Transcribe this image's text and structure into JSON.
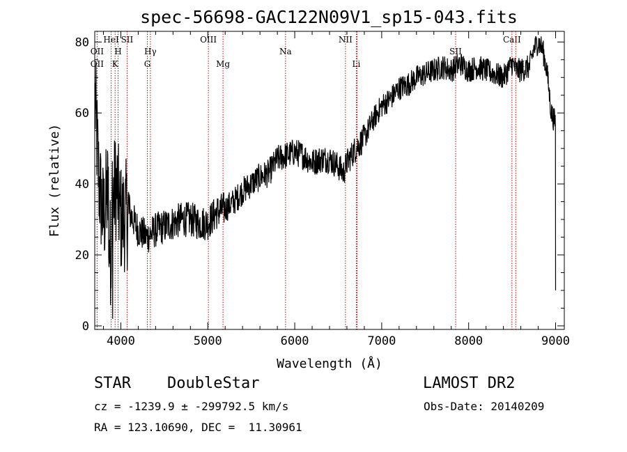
{
  "chart_data": {
    "type": "line",
    "title": "spec-56698-GAC122N09V1_sp15-043.fits",
    "xlabel": "Wavelength (Å)",
    "ylabel": "Flux (relative)",
    "xlim": [
      3700,
      9100
    ],
    "ylim": [
      -1,
      83
    ],
    "xticks": [
      4000,
      5000,
      6000,
      7000,
      8000,
      9000
    ],
    "yticks": [
      0,
      20,
      40,
      60,
      80
    ],
    "grid": false,
    "line_color": "#000000",
    "marker_color": "#cc0000",
    "series": [
      {
        "x": [
          3700,
          3750,
          3800,
          3850,
          3880,
          3900,
          3950,
          4000,
          4100,
          4200,
          4300,
          4400,
          4500,
          4600,
          4700,
          4800,
          4900,
          5000,
          5100,
          5200,
          5300,
          5400,
          5500,
          5600,
          5700,
          5800,
          5900,
          6000,
          6100,
          6200,
          6300,
          6400,
          6500,
          6560,
          6600,
          6650,
          6700,
          6800,
          6900,
          7000,
          7100,
          7200,
          7300,
          7400,
          7500,
          7600,
          7700,
          7800,
          7900,
          8000,
          8100,
          8200,
          8300,
          8400,
          8500,
          8550,
          8600,
          8700,
          8750,
          8800,
          8850,
          8900,
          8950,
          9000
        ],
        "y": [
          65,
          40,
          30,
          38,
          20,
          35,
          40,
          30,
          32,
          27,
          25,
          27,
          28,
          29,
          30,
          30,
          29,
          29,
          32,
          33,
          35,
          38,
          40,
          42,
          43,
          47,
          48,
          49,
          48,
          46,
          47,
          47,
          45,
          43,
          46,
          48,
          50,
          53,
          58,
          62,
          64,
          67,
          68,
          70,
          71,
          72,
          73,
          72,
          74,
          72,
          73,
          72,
          71,
          70,
          74,
          72,
          72,
          73,
          78,
          80,
          78,
          72,
          60,
          57
        ]
      }
    ],
    "line_markers": [
      {
        "name": "OII",
        "x": 3727,
        "row": "upper"
      },
      {
        "name": "OII",
        "x": 3727,
        "row": "lower"
      },
      {
        "name": "HeI",
        "x": 3889,
        "row": "top"
      },
      {
        "name": "SII",
        "x": 4072,
        "row": "top"
      },
      {
        "name": "H",
        "x": 3968,
        "row": "upper"
      },
      {
        "name": "K",
        "x": 3934,
        "row": "lower"
      },
      {
        "name": "Hγ",
        "x": 4340,
        "row": "upper"
      },
      {
        "name": "G",
        "x": 4305,
        "row": "lower"
      },
      {
        "name": "OIII",
        "x": 5007,
        "row": "top"
      },
      {
        "name": "Mg",
        "x": 5175,
        "row": "lower"
      },
      {
        "name": "Na",
        "x": 5894,
        "row": "upper"
      },
      {
        "name": "NII",
        "x": 6583,
        "row": "top"
      },
      {
        "name": "Li",
        "x": 6708,
        "row": "lower"
      },
      {
        "name": "SII",
        "x": 6717,
        "row": "hidden"
      },
      {
        "name": "SII",
        "x": 7850,
        "row": "upper"
      },
      {
        "name": "CaII",
        "x": 8498,
        "row": "top"
      },
      {
        "name": "CaII",
        "x": 8542,
        "row": "lower"
      }
    ]
  },
  "info": {
    "object_class": "STAR",
    "subclass": "DoubleStar",
    "survey": "LAMOST DR2",
    "redshift": "cz = -1239.9 ± -299792.5 km/s",
    "obs_date": "Obs-Date: 20140209",
    "coords": "RA = 123.10690, DEC =  11.30961"
  }
}
